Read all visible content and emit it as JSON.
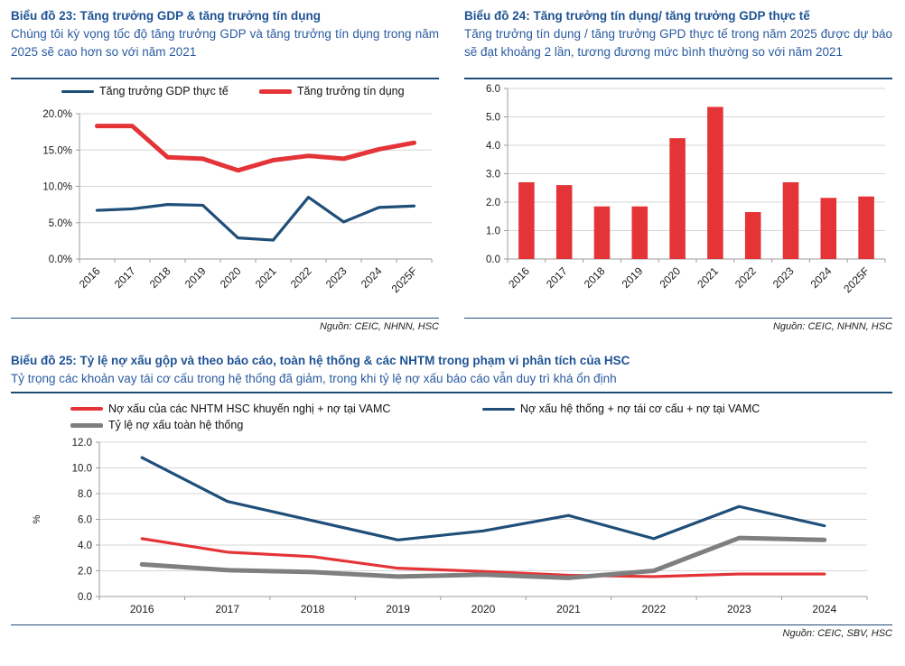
{
  "chart_data": [
    {
      "id": "gdp-credit-growth",
      "type": "line",
      "title": "Biểu đồ 23: Tăng trưởng GDP & tăng trưởng tín dụng",
      "subtitle": "Chúng tôi kỳ vọng tốc độ tăng trưởng GDP và tăng trưởng tín dụng trong năm 2025 sẽ cao hơn so với năm 2021",
      "categories": [
        "2016",
        "2017",
        "2018",
        "2019",
        "2020",
        "2021",
        "2022",
        "2023",
        "2024",
        "2025F"
      ],
      "series": [
        {
          "name": "Tăng trưởng GDP thực tế",
          "color": "#1F4E79",
          "width": 3.2,
          "values": [
            6.7,
            6.9,
            7.5,
            7.4,
            2.9,
            2.6,
            8.5,
            5.1,
            7.1,
            7.3
          ]
        },
        {
          "name": "Tăng trưởng tín dụng",
          "color": "#E43438",
          "width": 5,
          "values": [
            18.3,
            18.3,
            14.0,
            13.8,
            12.2,
            13.6,
            14.2,
            13.8,
            15.1,
            16.0
          ]
        }
      ],
      "ylim": [
        0,
        20
      ],
      "ytick_step": 5,
      "ytick_format": "percent1",
      "grid": true,
      "legend_position": "top",
      "source": "Nguồn: CEIC, NHNN, HSC"
    },
    {
      "id": "credit-to-gdp-growth-ratio",
      "type": "bar",
      "title": "Biểu đồ 24: Tăng trưởng tín dụng/ tăng trưởng GDP thực tế",
      "subtitle": "Tăng trưởng tín dụng / tăng trưởng GPD thực tế trong năm 2025 được dự báo sẽ đạt khoảng 2 lần, tương đương mức bình thường so với năm 2021",
      "categories": [
        "2016",
        "2017",
        "2018",
        "2019",
        "2020",
        "2021",
        "2022",
        "2023",
        "2024",
        "2025F"
      ],
      "values": [
        2.7,
        2.6,
        1.85,
        1.85,
        4.25,
        5.35,
        1.65,
        2.7,
        2.15,
        2.2
      ],
      "bar_color": "#E43438",
      "ylim": [
        0,
        6
      ],
      "ytick_step": 1,
      "ytick_format": "decimal1",
      "grid": true,
      "legend_position": "none",
      "source": "Nguồn: CEIC, NHNN, HSC"
    },
    {
      "id": "npl-ratios",
      "type": "line",
      "title": "Biểu đồ 25: Tỷ lệ nợ xấu gộp và theo báo cáo, toàn hệ thống & các NHTM trong phạm vi phân tích của HSC",
      "subtitle": "Tỷ trọng các khoản vay tái cơ cấu trong hệ thống đã giảm, trong khi tỷ lệ nợ xấu báo cáo vẫn duy trì khá ổn định",
      "categories": [
        "2016",
        "2017",
        "2018",
        "2019",
        "2020",
        "2021",
        "2022",
        "2023",
        "2024"
      ],
      "series": [
        {
          "name": "Nợ xấu của các NHTM HSC khuyến nghị + nợ tại VAMC",
          "color": "#E43438",
          "width": 3.2,
          "values": [
            4.5,
            3.45,
            3.1,
            2.2,
            1.95,
            1.65,
            1.55,
            1.75,
            1.75
          ]
        },
        {
          "name": "Nợ xấu hệ thống + nợ tái cơ cấu + nợ tại VAMC",
          "color": "#1F4E79",
          "width": 3.2,
          "values": [
            10.8,
            7.4,
            5.9,
            4.4,
            5.1,
            6.3,
            4.5,
            7.0,
            5.5
          ]
        },
        {
          "name": "Tỷ lệ nợ xấu toàn hệ thống",
          "color": "#7F7F7F",
          "width": 5,
          "values": [
            2.5,
            2.05,
            1.9,
            1.55,
            1.7,
            1.45,
            2.0,
            4.55,
            4.4
          ]
        }
      ],
      "ylim": [
        0,
        12
      ],
      "ytick_step": 2,
      "ytick_format": "decimal1",
      "ylabel": "%",
      "grid": true,
      "legend_position": "top",
      "source": "Nguồn: CEIC, SBV, HSC"
    }
  ],
  "colors": {
    "title_blue": "#1F5394",
    "divider_navy": "#1F4E79",
    "red": "#E43438",
    "navy": "#1F4E79",
    "gray": "#7F7F7F",
    "gridline": "#D6D6D6"
  }
}
